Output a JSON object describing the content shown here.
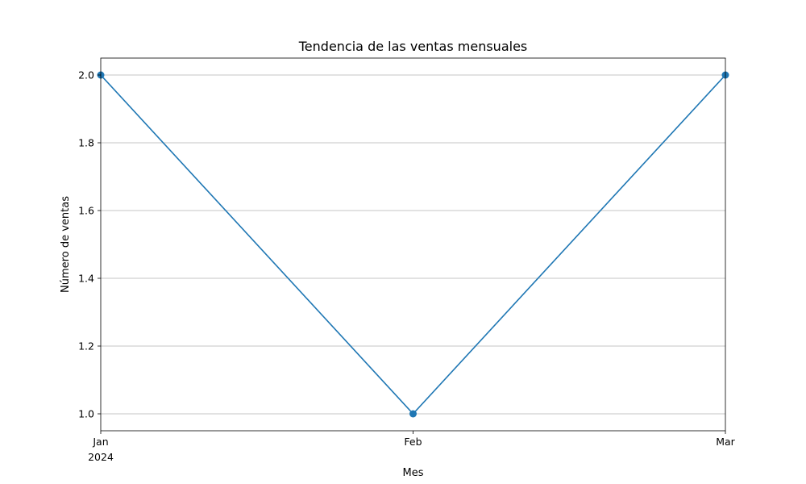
{
  "chart_data": {
    "type": "line",
    "title": "Tendencia de las ventas mensuales",
    "xlabel": "Mes",
    "ylabel": "Número de ventas",
    "x_ticks": [
      {
        "month": "2024-01",
        "label": "Jan",
        "sublabel": "2024"
      },
      {
        "month": "2024-02",
        "label": "Feb",
        "sublabel": ""
      },
      {
        "month": "2024-03",
        "label": "Mar",
        "sublabel": ""
      }
    ],
    "xlim": [
      "2024-01",
      "2024-03"
    ],
    "ylim": [
      0.95,
      2.05
    ],
    "y_ticks": [
      "1.0",
      "1.2",
      "1.4",
      "1.6",
      "1.8",
      "2.0"
    ],
    "grid": "horizontal",
    "series": [
      {
        "x": [
          "2024-01",
          "2024-02",
          "2024-03"
        ],
        "values": [
          2,
          1,
          2
        ],
        "color": "#1f77b4",
        "marker": "circle"
      }
    ]
  }
}
